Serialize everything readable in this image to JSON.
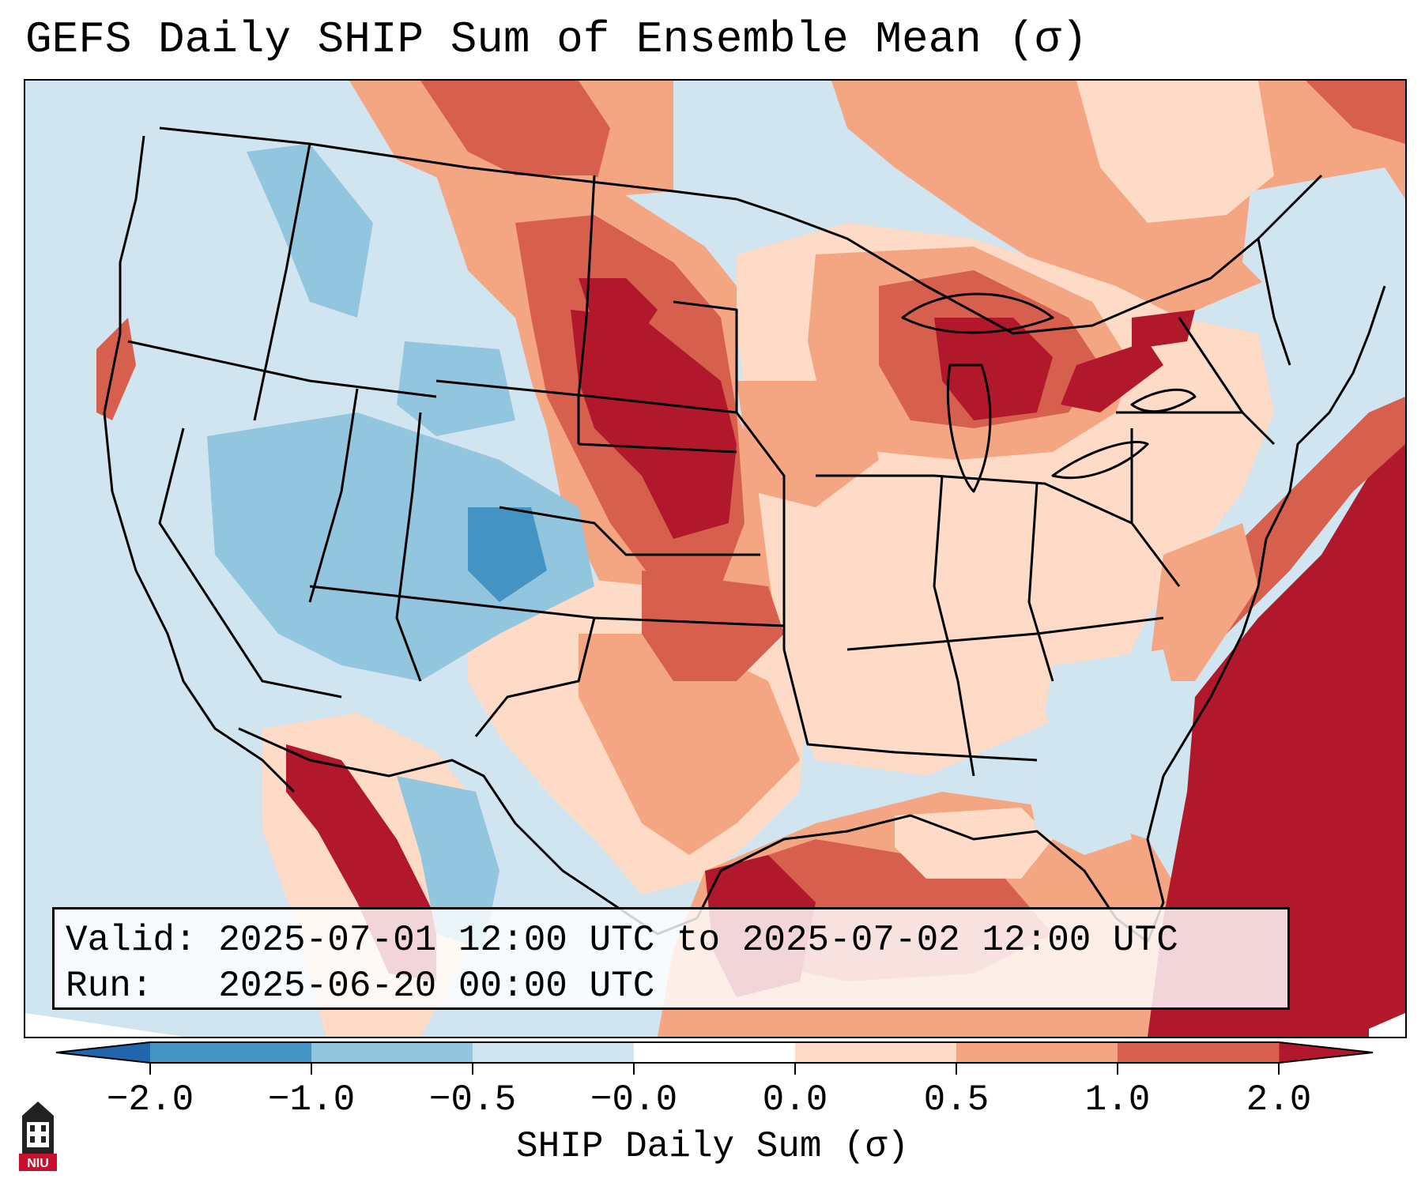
{
  "title": "GEFS Daily SHIP Sum of Ensemble Mean (σ)",
  "info": {
    "valid_line": "Valid: 2025-07-01 12:00 UTC to 2025-07-02 12:00 UTC",
    "run_line": "Run:   2025-06-20 00:00 UTC"
  },
  "colorbar": {
    "label": "SHIP Daily Sum (σ)",
    "ticks": [
      "−2.0",
      "−1.0",
      "−0.5",
      "−0.0",
      "0.0",
      "0.5",
      "1.0",
      "2.0"
    ],
    "colors": [
      "#4393c3",
      "#92c5de",
      "#d1e5f0",
      "#ffffff",
      "#fddbc7",
      "#f4a582",
      "#d6604d",
      "#b2182b"
    ],
    "under_color": "#2166ac",
    "over_color": "#b2182b"
  },
  "logo": {
    "text": "NIU",
    "icon": "university-tower-icon"
  },
  "map": {
    "region": "Contiguous United States",
    "colors": {
      "deep_blue": "#4393c3",
      "mid_blue": "#92c5de",
      "light_blue": "#d1e5f0",
      "light_red": "#fddbc7",
      "salmon": "#f4a582",
      "red": "#d6604d",
      "dark_red": "#b2182b"
    }
  }
}
